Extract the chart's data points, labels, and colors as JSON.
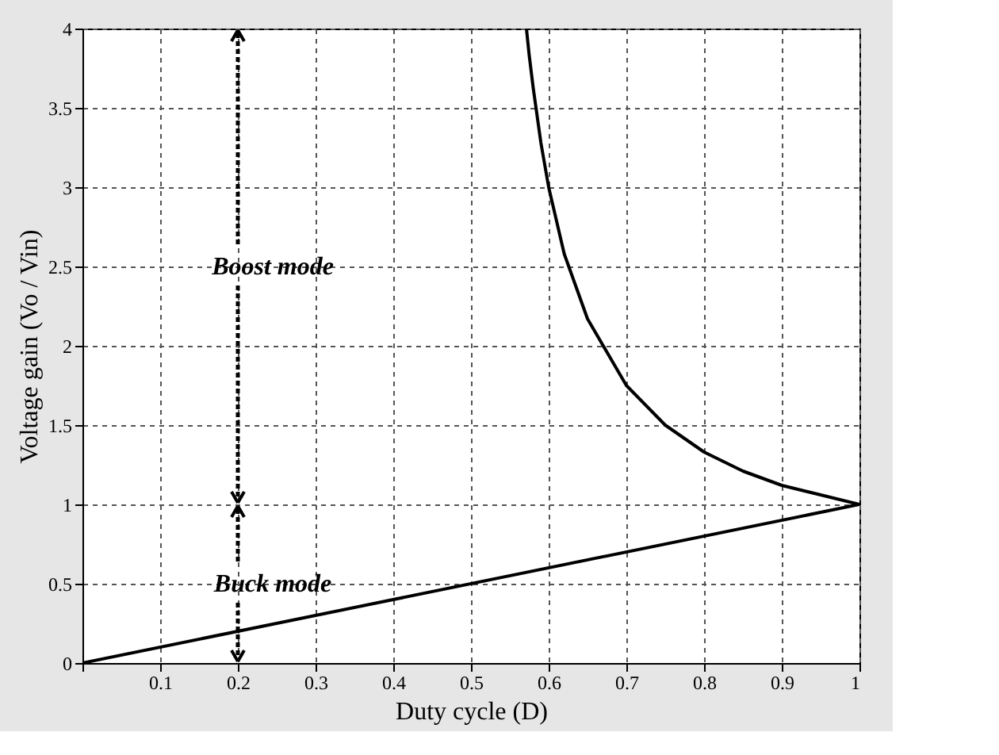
{
  "chart_data": {
    "type": "line",
    "xlabel": "Duty cycle (D)",
    "ylabel": "Voltage gain (Vo / Vin)",
    "series": [
      {
        "color": "#000000",
        "x": [
          0,
          1
        ],
        "values": [
          0,
          1
        ]
      },
      {
        "color": "#000000",
        "x": [
          0.5714,
          0.575,
          0.58,
          0.59,
          0.6,
          0.62,
          0.65,
          0.7,
          0.75,
          0.8,
          0.85,
          0.9,
          0.95,
          1
        ],
        "values": [
          4,
          3.83,
          3.63,
          3.28,
          3,
          2.58,
          2.17,
          1.75,
          1.5,
          1.33,
          1.21,
          1.12,
          1.06,
          1
        ]
      }
    ],
    "xlim": [
      0,
      1
    ],
    "xticks": [
      {
        "value": 0,
        "label": null
      },
      0.1,
      0.2,
      0.3,
      0.4,
      0.5,
      0.6,
      0.7,
      0.8,
      0.9,
      1
    ],
    "ylim": [
      0,
      4
    ],
    "yticks": [
      0,
      0.5,
      1,
      1.5,
      2,
      2.5,
      3,
      3.5,
      4
    ],
    "grid": true,
    "line_style": "solid",
    "annotations": [
      "Boost mode",
      "Buck mode"
    ]
  }
}
